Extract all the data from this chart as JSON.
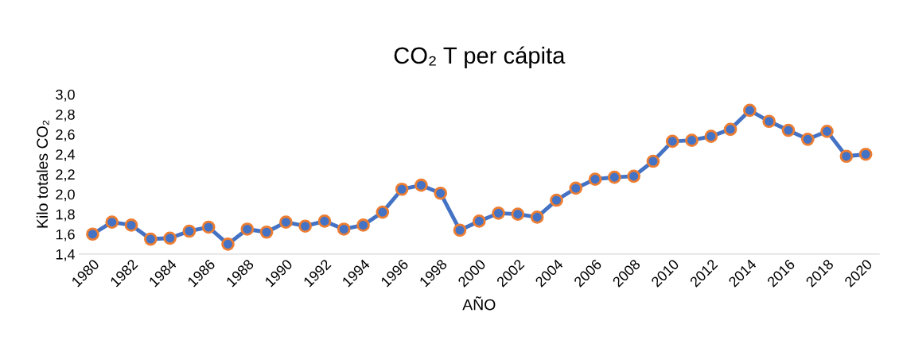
{
  "chart_data": {
    "type": "line",
    "title": "CO₂ T per cápita",
    "xlabel": "AÑO",
    "ylabel": "Kilo totales CO₂",
    "categories": [
      "1980",
      null,
      "1982",
      null,
      "1984",
      null,
      "1986",
      null,
      "1988",
      null,
      "1990",
      null,
      "1992",
      null,
      "1994",
      null,
      "1996",
      null,
      "1998",
      null,
      "2000",
      null,
      "2002",
      null,
      "2004",
      null,
      "2006",
      null,
      "2008",
      null,
      "2010",
      null,
      "2012",
      null,
      "2014",
      null,
      "2016",
      null,
      "2018",
      null,
      "2020"
    ],
    "series": [
      {
        "color": "#4472c4",
        "values": [
          1.6,
          1.72,
          1.69,
          1.55,
          1.56,
          1.63,
          1.67,
          1.5,
          1.65,
          1.62,
          1.72,
          1.68,
          1.73,
          1.65,
          1.69,
          1.82,
          2.05,
          2.09,
          2.01,
          1.64,
          1.73,
          1.81,
          1.8,
          1.77,
          1.94,
          2.06,
          2.15,
          2.17,
          2.18,
          2.33,
          2.53,
          2.54,
          2.58,
          2.65,
          2.84,
          2.73,
          2.64,
          2.55,
          2.63,
          2.38,
          2.4
        ]
      }
    ],
    "ylim": [
      1.4,
      3.0
    ],
    "yticks": [
      {
        "value": 1.4,
        "label": "1,4"
      },
      {
        "value": 1.6,
        "label": "1,6"
      },
      {
        "value": 1.8,
        "label": "1,8"
      },
      {
        "value": 2.0,
        "label": "2,0"
      },
      {
        "value": 2.2,
        "label": "2,2"
      },
      {
        "value": 2.4,
        "label": "2,4"
      },
      {
        "value": 2.6,
        "label": "2,6"
      },
      {
        "value": 2.8,
        "label": "2,8"
      },
      {
        "value": 3.0,
        "label": "3,0"
      }
    ],
    "grid": false,
    "legend": false,
    "marker": "circle",
    "line_style": "solid"
  }
}
